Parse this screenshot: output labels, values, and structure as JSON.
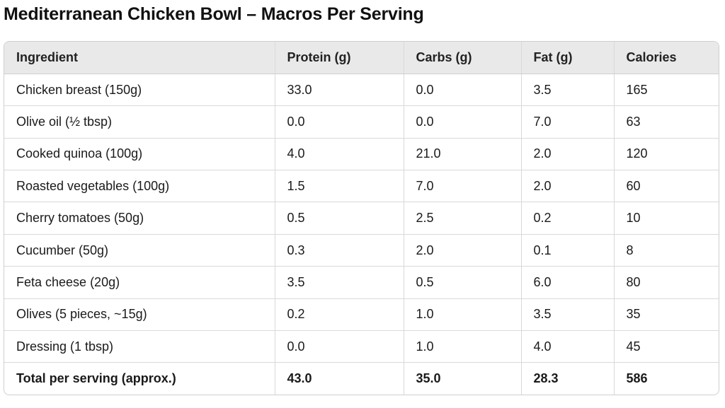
{
  "title": "Mediterranean Chicken Bowl – Macros Per Serving",
  "table": {
    "headers": [
      "Ingredient",
      "Protein (g)",
      "Carbs (g)",
      "Fat (g)",
      "Calories"
    ],
    "rows": [
      [
        "Chicken breast (150g)",
        "33.0",
        "0.0",
        "3.5",
        "165"
      ],
      [
        "Olive oil (½ tbsp)",
        "0.0",
        "0.0",
        "7.0",
        "63"
      ],
      [
        "Cooked quinoa (100g)",
        "4.0",
        "21.0",
        "2.0",
        "120"
      ],
      [
        "Roasted vegetables (100g)",
        "1.5",
        "7.0",
        "2.0",
        "60"
      ],
      [
        "Cherry tomatoes (50g)",
        "0.5",
        "2.5",
        "0.2",
        "10"
      ],
      [
        "Cucumber (50g)",
        "0.3",
        "2.0",
        "0.1",
        "8"
      ],
      [
        "Feta cheese (20g)",
        "3.5",
        "0.5",
        "6.0",
        "80"
      ],
      [
        "Olives (5 pieces, ~15g)",
        "0.2",
        "1.0",
        "3.5",
        "35"
      ],
      [
        "Dressing (1 tbsp)",
        "0.0",
        "1.0",
        "4.0",
        "45"
      ]
    ],
    "total": [
      "Total per serving (approx.)",
      "43.0",
      "35.0",
      "28.3",
      "586"
    ]
  }
}
